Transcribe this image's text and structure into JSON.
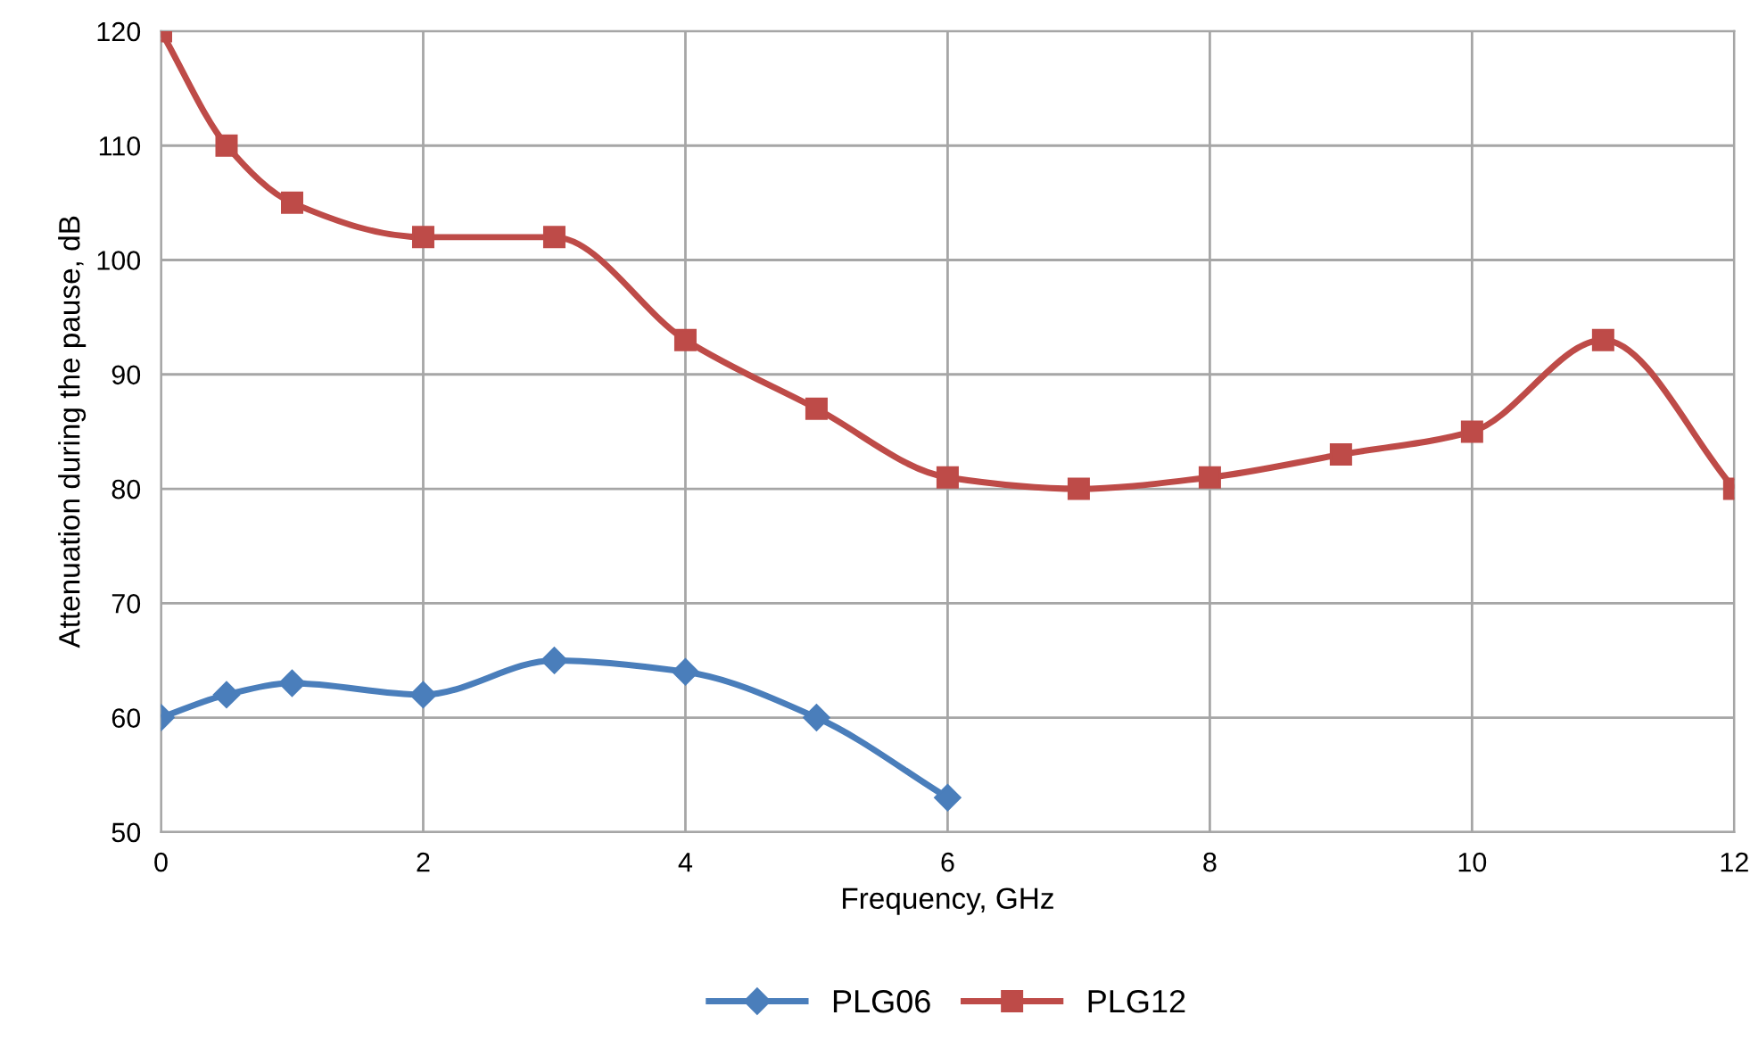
{
  "chart_data": {
    "type": "line",
    "xlabel": "Frequency, GHz",
    "ylabel": "Attenuation during the pause, dB",
    "xlim": [
      0,
      12
    ],
    "xticks": [
      0,
      2,
      4,
      6,
      8,
      10,
      12
    ],
    "ylim": [
      50,
      120
    ],
    "yticks": [
      50,
      60,
      70,
      80,
      90,
      100,
      110,
      120
    ],
    "grid": true,
    "legend": "bottom",
    "line_style": "solid",
    "series": [
      {
        "name": "PLG06",
        "color": "#4a7ebb",
        "marker": "diamond",
        "x": [
          0,
          0.5,
          1,
          2,
          3,
          4,
          5,
          6
        ],
        "values": [
          60,
          62,
          63,
          62,
          65,
          64,
          60,
          53
        ]
      },
      {
        "name": "PLG12",
        "color": "#be4b48",
        "marker": "square",
        "x": [
          0,
          0.5,
          1,
          2,
          3,
          4,
          5,
          6,
          7,
          8,
          9,
          10,
          11,
          12
        ],
        "values": [
          120,
          110,
          105,
          102,
          102,
          93,
          87,
          81,
          80,
          81,
          83,
          85,
          93,
          80
        ]
      }
    ]
  }
}
